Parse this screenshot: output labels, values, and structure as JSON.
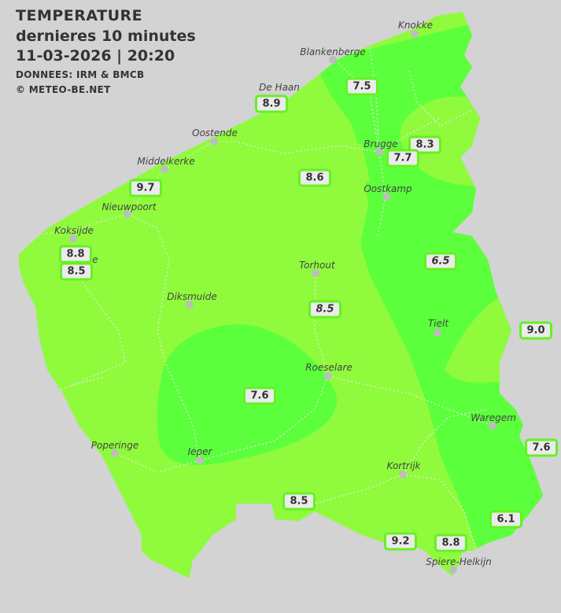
{
  "header": {
    "title": "TEMPERATURE",
    "subtitle": "dernieres 10 minutes",
    "datetime": "11-03-2026  |  20:20",
    "source": "DONNEES: IRM & BMCB",
    "copyright": "© METEO-BE.NET"
  },
  "colors": {
    "background": "#d3d3d3",
    "zone_light": "#8ffb3c",
    "zone_dark": "#5cff3c",
    "badge_border": "#66f022"
  },
  "cities": [
    {
      "name": "Knokke"
    },
    {
      "name": "Blankenberge"
    },
    {
      "name": "De Haan"
    },
    {
      "name": "Oostende"
    },
    {
      "name": "Middelkerke"
    },
    {
      "name": "Nieuwpoort"
    },
    {
      "name": "Koksijde"
    },
    {
      "name": "Brugge"
    },
    {
      "name": "Oostkamp"
    },
    {
      "name": "Torhout"
    },
    {
      "name": "Diksmuide"
    },
    {
      "name": "Tielt"
    },
    {
      "name": "Roeselare"
    },
    {
      "name": "Waregem"
    },
    {
      "name": "Poperinge"
    },
    {
      "name": "Ieper"
    },
    {
      "name": "Kortrijk"
    },
    {
      "name": "Spiere-Helkijn"
    },
    {
      "name": "e"
    }
  ],
  "readings": [
    {
      "value": "7.5"
    },
    {
      "value": "8.9"
    },
    {
      "value": "8.3"
    },
    {
      "value": "7.7"
    },
    {
      "value": "8.6"
    },
    {
      "value": "9.7"
    },
    {
      "value": "8.8"
    },
    {
      "value": "8.5"
    },
    {
      "value": "6.5"
    },
    {
      "value": "8.5"
    },
    {
      "value": "9.0"
    },
    {
      "value": "7.6"
    },
    {
      "value": "7.6"
    },
    {
      "value": "8.5"
    },
    {
      "value": "6.1"
    },
    {
      "value": "9.2"
    },
    {
      "value": "8.8"
    }
  ]
}
